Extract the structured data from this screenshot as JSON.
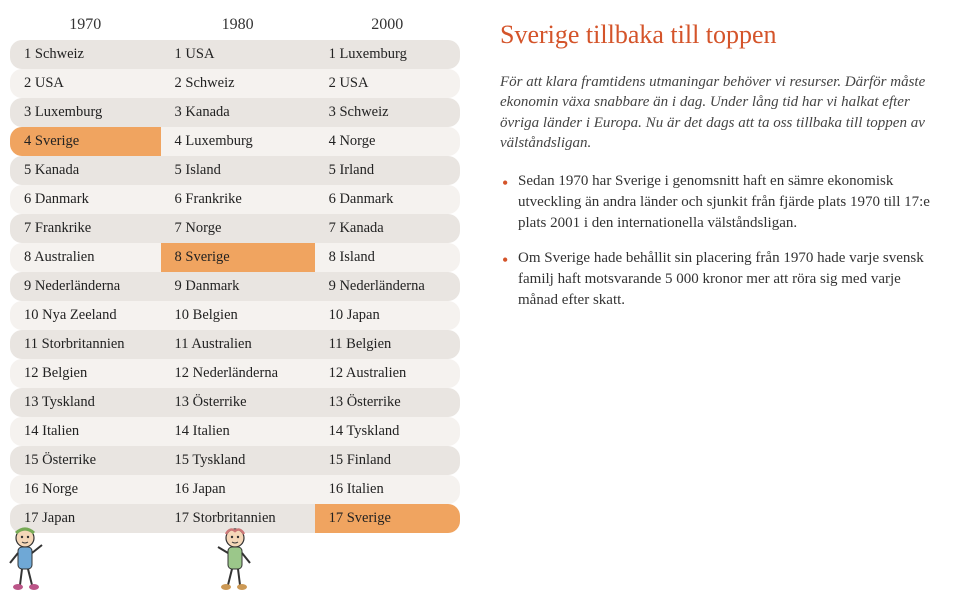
{
  "table": {
    "headers": [
      "1970",
      "1980",
      "2000"
    ],
    "rows": [
      {
        "cells": [
          "1 Schweiz",
          "1 USA",
          "1 Luxemburg"
        ],
        "hl": [
          false,
          false,
          false
        ]
      },
      {
        "cells": [
          "2 USA",
          "2 Schweiz",
          "2 USA"
        ],
        "hl": [
          false,
          false,
          false
        ]
      },
      {
        "cells": [
          "3 Luxemburg",
          "3 Kanada",
          "3 Schweiz"
        ],
        "hl": [
          false,
          false,
          false
        ]
      },
      {
        "cells": [
          "4 Sverige",
          "4 Luxemburg",
          "4 Norge"
        ],
        "hl": [
          true,
          false,
          false
        ]
      },
      {
        "cells": [
          "5 Kanada",
          "5 Island",
          "5 Irland"
        ],
        "hl": [
          false,
          false,
          false
        ]
      },
      {
        "cells": [
          "6 Danmark",
          "6 Frankrike",
          "6 Danmark"
        ],
        "hl": [
          false,
          false,
          false
        ]
      },
      {
        "cells": [
          "7 Frankrike",
          "7 Norge",
          "7 Kanada"
        ],
        "hl": [
          false,
          false,
          false
        ]
      },
      {
        "cells": [
          "8 Australien",
          "8 Sverige",
          "8 Island"
        ],
        "hl": [
          false,
          true,
          false
        ]
      },
      {
        "cells": [
          "9 Nederländerna",
          "9 Danmark",
          "9 Nederländerna"
        ],
        "hl": [
          false,
          false,
          false
        ]
      },
      {
        "cells": [
          "10 Nya Zeeland",
          "10 Belgien",
          "10 Japan"
        ],
        "hl": [
          false,
          false,
          false
        ]
      },
      {
        "cells": [
          "11 Storbritannien",
          "11 Australien",
          "11 Belgien"
        ],
        "hl": [
          false,
          false,
          false
        ]
      },
      {
        "cells": [
          "12 Belgien",
          "12 Nederländerna",
          "12 Australien"
        ],
        "hl": [
          false,
          false,
          false
        ]
      },
      {
        "cells": [
          "13 Tyskland",
          "13 Österrike",
          "13 Österrike"
        ],
        "hl": [
          false,
          false,
          false
        ]
      },
      {
        "cells": [
          "14 Italien",
          "14 Italien",
          "14 Tyskland"
        ],
        "hl": [
          false,
          false,
          false
        ]
      },
      {
        "cells": [
          "15 Österrike",
          "15 Tyskland",
          "15 Finland"
        ],
        "hl": [
          false,
          false,
          false
        ]
      },
      {
        "cells": [
          "16 Norge",
          "16 Japan",
          "16 Italien"
        ],
        "hl": [
          false,
          false,
          false
        ]
      },
      {
        "cells": [
          "17 Japan",
          "17 Storbritannien",
          "17 Sverige"
        ],
        "hl": [
          false,
          false,
          true
        ]
      }
    ],
    "stripe_colors": [
      "#e9e5e1",
      "#f5f2ef"
    ],
    "highlight_color": "#f0a460"
  },
  "right": {
    "heading": "Sverige tillbaka till toppen",
    "intro": "För att klara framtidens utmaningar behöver vi resurser. Därför måste ekonomin växa snabbare än i dag. Under lång tid har vi halkat efter övriga länder i Europa. Nu är det dags att ta oss tillbaka till toppen av välståndsligan.",
    "bullets": [
      "Sedan 1970 har Sverige i genomsnitt haft en sämre ekonomisk utveckling än andra länder och sjunkit från fjärde plats 1970 till 17:e plats 2001 i den internationella välståndsligan.",
      "Om Sverige hade behållit sin placering från 1970 hade varje svensk familj haft motsvarande 5 000 kronor mer att röra sig med varje månad efter skatt."
    ]
  },
  "colors": {
    "heading": "#d4542a",
    "bullet": "#d4542a",
    "text": "#333333"
  }
}
